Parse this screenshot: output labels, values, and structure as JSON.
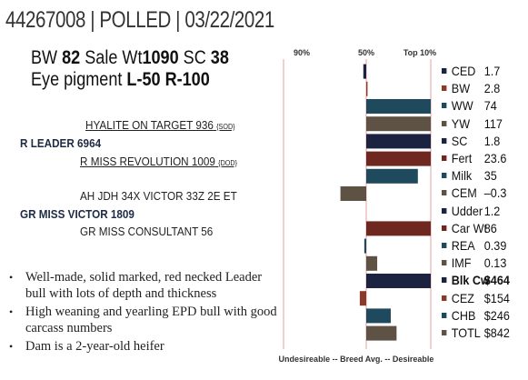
{
  "header": {
    "text": "44267008 | POLLED | 03/22/2021"
  },
  "stats": {
    "bw_label": "BW",
    "bw_value": "82",
    "sale_label": "Sale Wt",
    "sale_value": "1090",
    "sc_label": "SC",
    "sc_value": "38",
    "eye_label": "Eye pigment",
    "eye_l": "L-50",
    "eye_r": "R-100"
  },
  "pedigree": {
    "sire_sire": "HYALITE ON TARGET 936",
    "sire_sire_tag": "{SOD}",
    "sire": "R LEADER 6964",
    "sire_dam": "R MISS REVOLUTION 1009",
    "sire_dam_tag": "{DOD}",
    "dam_sire": "AH JDH 34X VICTOR 33Z 2E ET",
    "dam": "GR MISS VICTOR 1809",
    "dam_dam": "GR MISS CONSULTANT 56"
  },
  "bullets": [
    "Well-made, solid marked, red necked Leader bull with lots of depth and thickness",
    "High weaning and yearling EPD bull with good carcass numbers",
    "Dam is a 2-year-old heifer"
  ],
  "chart_data": {
    "type": "bar",
    "axis_labels": [
      "90%",
      "50%",
      "Top 10%"
    ],
    "footer": "Undesireable -- Breed Avg. --  Desireable",
    "traits": [
      {
        "name": "CED",
        "value": "1.7",
        "color": "#1b2340",
        "bar_from": -0.045,
        "bar_to": 0.0,
        "bold": false
      },
      {
        "name": "BW",
        "value": "2.8",
        "color": "#8a3a2a",
        "bar_from": 0.0,
        "bar_to": 0.02,
        "bold": false
      },
      {
        "name": "WW",
        "value": "74",
        "color": "#1f4a5e",
        "bar_from": 0.0,
        "bar_to": 1.0,
        "bold": false
      },
      {
        "name": "YW",
        "value": "117",
        "color": "#5e5244",
        "bar_from": 0.0,
        "bar_to": 1.0,
        "bold": false
      },
      {
        "name": "SC",
        "value": "1.8",
        "color": "#1b2340",
        "bar_from": 0.0,
        "bar_to": 1.0,
        "bold": false
      },
      {
        "name": "Fert",
        "value": "23.6",
        "color": "#6e2820",
        "bar_from": 0.0,
        "bar_to": 1.0,
        "bold": false
      },
      {
        "name": "Milk",
        "value": "35",
        "color": "#1f4a5e",
        "bar_from": 0.0,
        "bar_to": 0.8,
        "bold": false
      },
      {
        "name": "CEM",
        "value": "–0.3",
        "color": "#5e5244",
        "bar_from": -0.4,
        "bar_to": 0.0,
        "bold": false
      },
      {
        "name": "Udder",
        "value": "1.2",
        "color": "#1b2340",
        "bar_from": 0.0,
        "bar_to": 0.0,
        "bold": false
      },
      {
        "name": "Car Wt",
        "value": "86",
        "color": "#6e2820",
        "bar_from": 0.0,
        "bar_to": 1.0,
        "bold": false
      },
      {
        "name": "REA",
        "value": "0.39",
        "color": "#1f4a5e",
        "bar_from": -0.03,
        "bar_to": 0.0,
        "bold": false
      },
      {
        "name": "IMF",
        "value": "0.13",
        "color": "#5e5244",
        "bar_from": 0.0,
        "bar_to": 0.17,
        "bold": false
      },
      {
        "name": "Blk Cw",
        "value": "$464",
        "color": "#1b2340",
        "bar_from": 0.0,
        "bar_to": 1.0,
        "bold": true
      },
      {
        "name": "CEZ",
        "value": "$154",
        "color": "#8a3a2a",
        "bar_from": -0.1,
        "bar_to": 0.0,
        "bold": false
      },
      {
        "name": "CHB",
        "value": "$246",
        "color": "#1f4a5e",
        "bar_from": 0.0,
        "bar_to": 0.38,
        "bold": false
      },
      {
        "name": "TOTL",
        "value": "$842",
        "color": "#5e5244",
        "bar_from": 0.0,
        "bar_to": 0.47,
        "bold": false
      }
    ]
  }
}
